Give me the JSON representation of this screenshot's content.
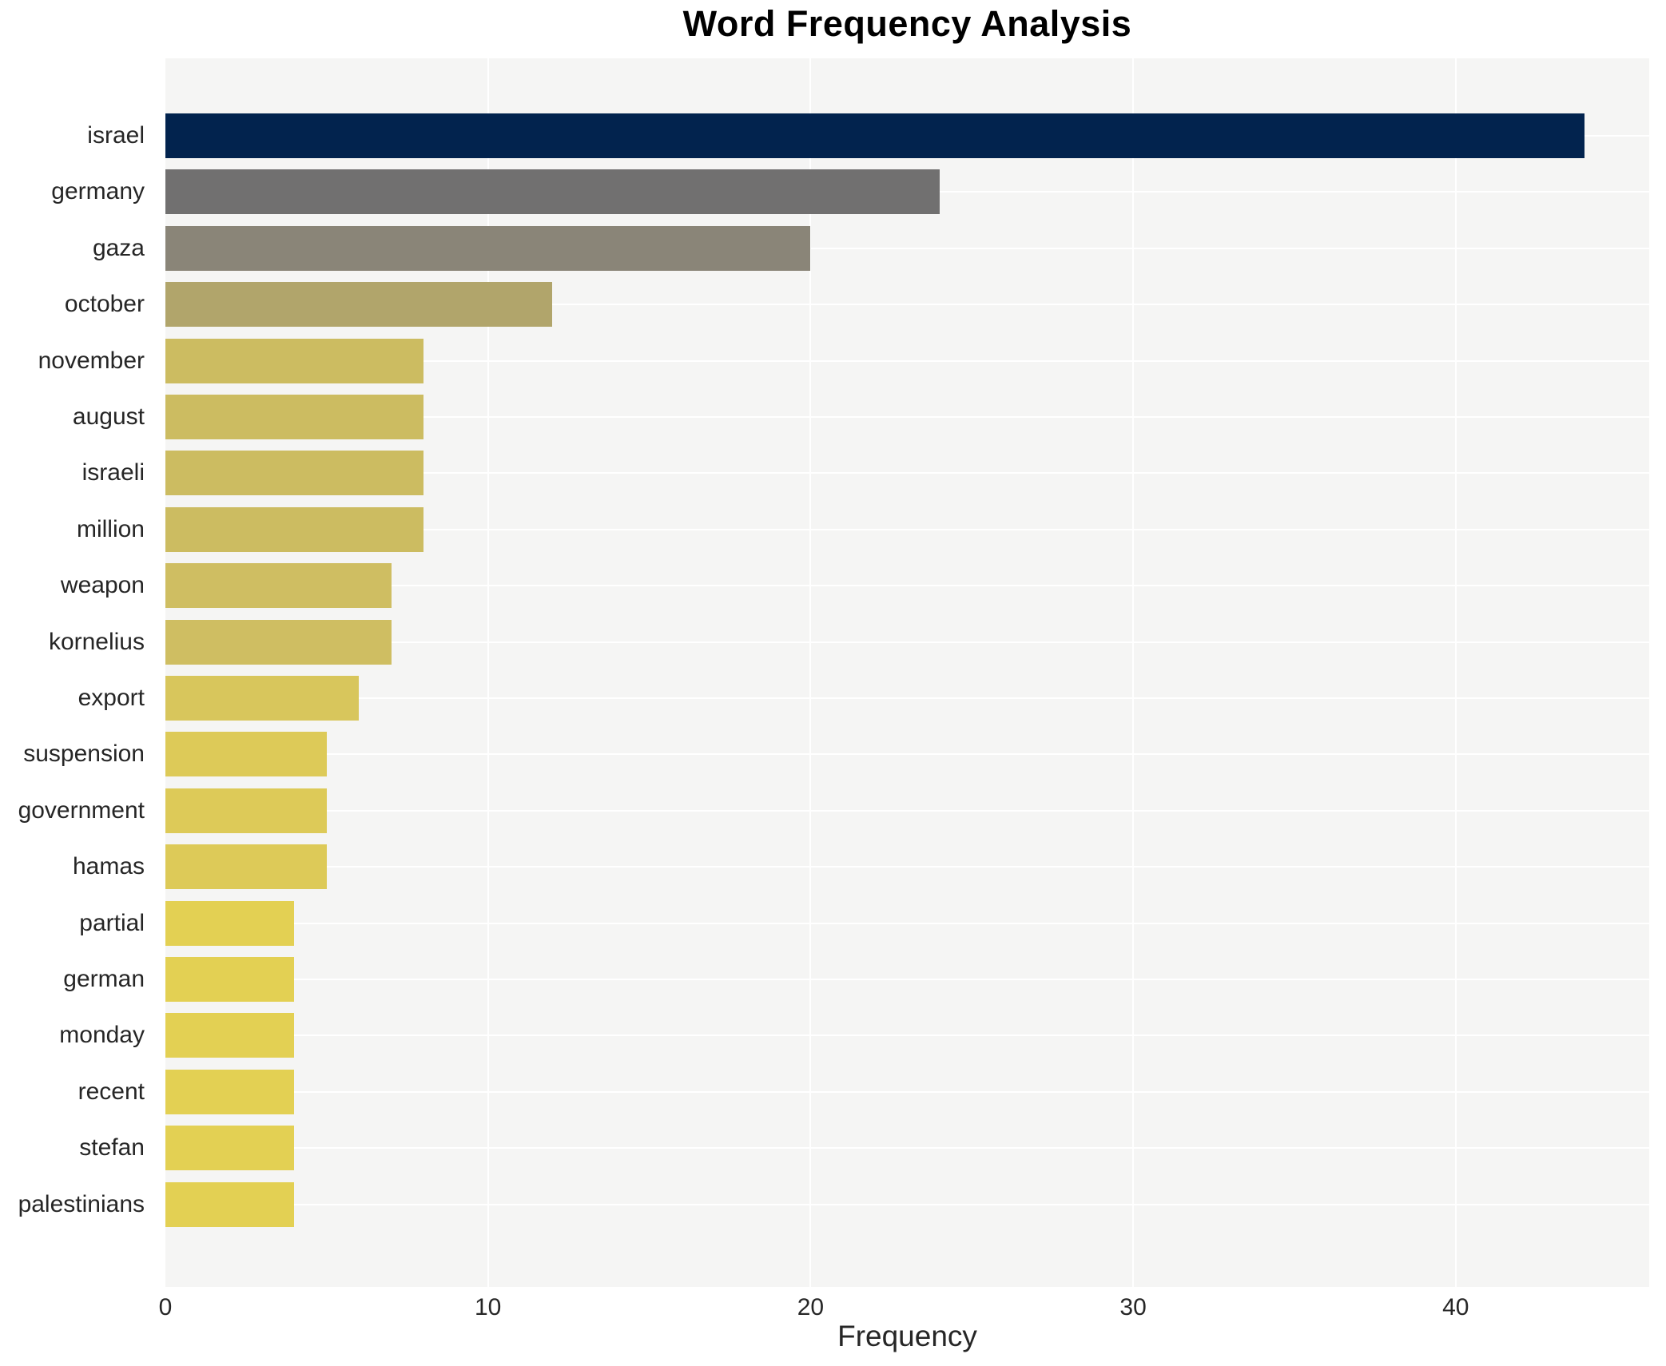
{
  "title": "Word Frequency Analysis",
  "chart_data": {
    "type": "bar",
    "orientation": "horizontal",
    "title": "Word Frequency Analysis",
    "xlabel": "Frequency",
    "ylabel": "",
    "xlim": [
      0,
      46
    ],
    "x_ticks": [
      0,
      10,
      20,
      30,
      40
    ],
    "grid": true,
    "legend": "none",
    "categories": [
      "israel",
      "germany",
      "gaza",
      "october",
      "november",
      "august",
      "israeli",
      "million",
      "weapon",
      "kornelius",
      "export",
      "suspension",
      "government",
      "hamas",
      "partial",
      "german",
      "monday",
      "recent",
      "stefan",
      "palestinians"
    ],
    "values": [
      44,
      24,
      20,
      12,
      8,
      8,
      8,
      8,
      7,
      7,
      6,
      5,
      5,
      5,
      4,
      4,
      4,
      4,
      4,
      4
    ],
    "bar_colors": [
      "#02234e",
      "#717070",
      "#8a8578",
      "#b1a56b",
      "#ccbc61",
      "#ccbc61",
      "#ccbc61",
      "#ccbc61",
      "#cfbe62",
      "#cfbe62",
      "#d8c65c",
      "#ddca58",
      "#ddca58",
      "#ddca58",
      "#e3d053",
      "#e3d053",
      "#e3d053",
      "#e3d053",
      "#e3d053",
      "#e3d053"
    ],
    "colors": {
      "plot_background": "#f5f5f4",
      "figure_background": "#ffffff",
      "gridline": "#ffffff",
      "text": "#262626",
      "title_text": "#000000"
    }
  }
}
